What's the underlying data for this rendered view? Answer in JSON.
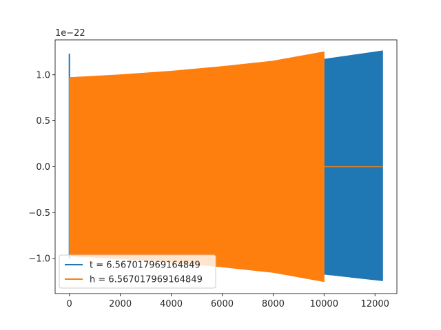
{
  "chart_data": {
    "type": "line",
    "title": "",
    "xlabel": "",
    "ylabel": "",
    "y_offset_label": "1e−22",
    "xlim": [
      -560,
      12860
    ],
    "ylim": [
      -1.38,
      1.38
    ],
    "x_ticks": [
      0,
      2000,
      4000,
      6000,
      8000,
      10000,
      12000
    ],
    "x_tick_labels": [
      "0",
      "2000",
      "4000",
      "6000",
      "8000",
      "10000",
      "12000"
    ],
    "y_ticks": [
      -1.0,
      -0.5,
      0.0,
      0.5,
      1.0
    ],
    "y_tick_labels": [
      "−1.0",
      "−0.5",
      "0.0",
      "0.5",
      "1.0"
    ],
    "grid": false,
    "legend_position": "lower-left",
    "series": [
      {
        "name": "t = 6.567017969164849",
        "color": "#1f77b4",
        "envelope": {
          "x": [
            0,
            2000,
            4000,
            6000,
            8000,
            10000,
            12300
          ],
          "upper": [
            0.97,
            0.99,
            1.02,
            1.06,
            1.11,
            1.17,
            1.26
          ],
          "lower": [
            -0.97,
            -0.99,
            -1.02,
            -1.06,
            -1.11,
            -1.17,
            -1.24
          ]
        },
        "spike_x": 0,
        "spike_max": 1.23,
        "spike_min": -1.0
      },
      {
        "name": "h = 6.567017969164849",
        "color": "#ff7f0e",
        "envelope": {
          "x": [
            0,
            2000,
            4000,
            6000,
            8000,
            10000
          ],
          "upper": [
            0.97,
            1.0,
            1.04,
            1.09,
            1.15,
            1.25
          ],
          "lower": [
            -0.97,
            -1.0,
            -1.04,
            -1.09,
            -1.15,
            -1.25
          ]
        },
        "zero_segment": [
          10000,
          12300
        ]
      }
    ]
  }
}
